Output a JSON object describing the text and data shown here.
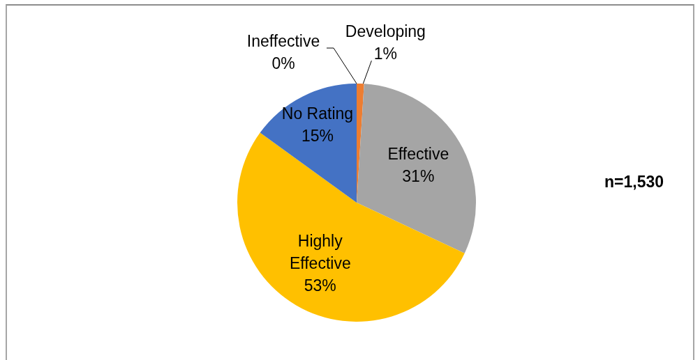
{
  "chart_data": {
    "type": "pie",
    "categories": [
      "Ineffective",
      "Developing",
      "Effective",
      "Highly Effective",
      "No Rating"
    ],
    "values": [
      0,
      1,
      31,
      53,
      15
    ],
    "value_labels": [
      "0%",
      "1%",
      "31%",
      "53%",
      "15%"
    ],
    "colors": [
      "#5b9bd5",
      "#ed7d31",
      "#a5a5a5",
      "#ffc000",
      "#4472c4"
    ],
    "legend": false,
    "annotations": [
      "n=1,530"
    ]
  }
}
